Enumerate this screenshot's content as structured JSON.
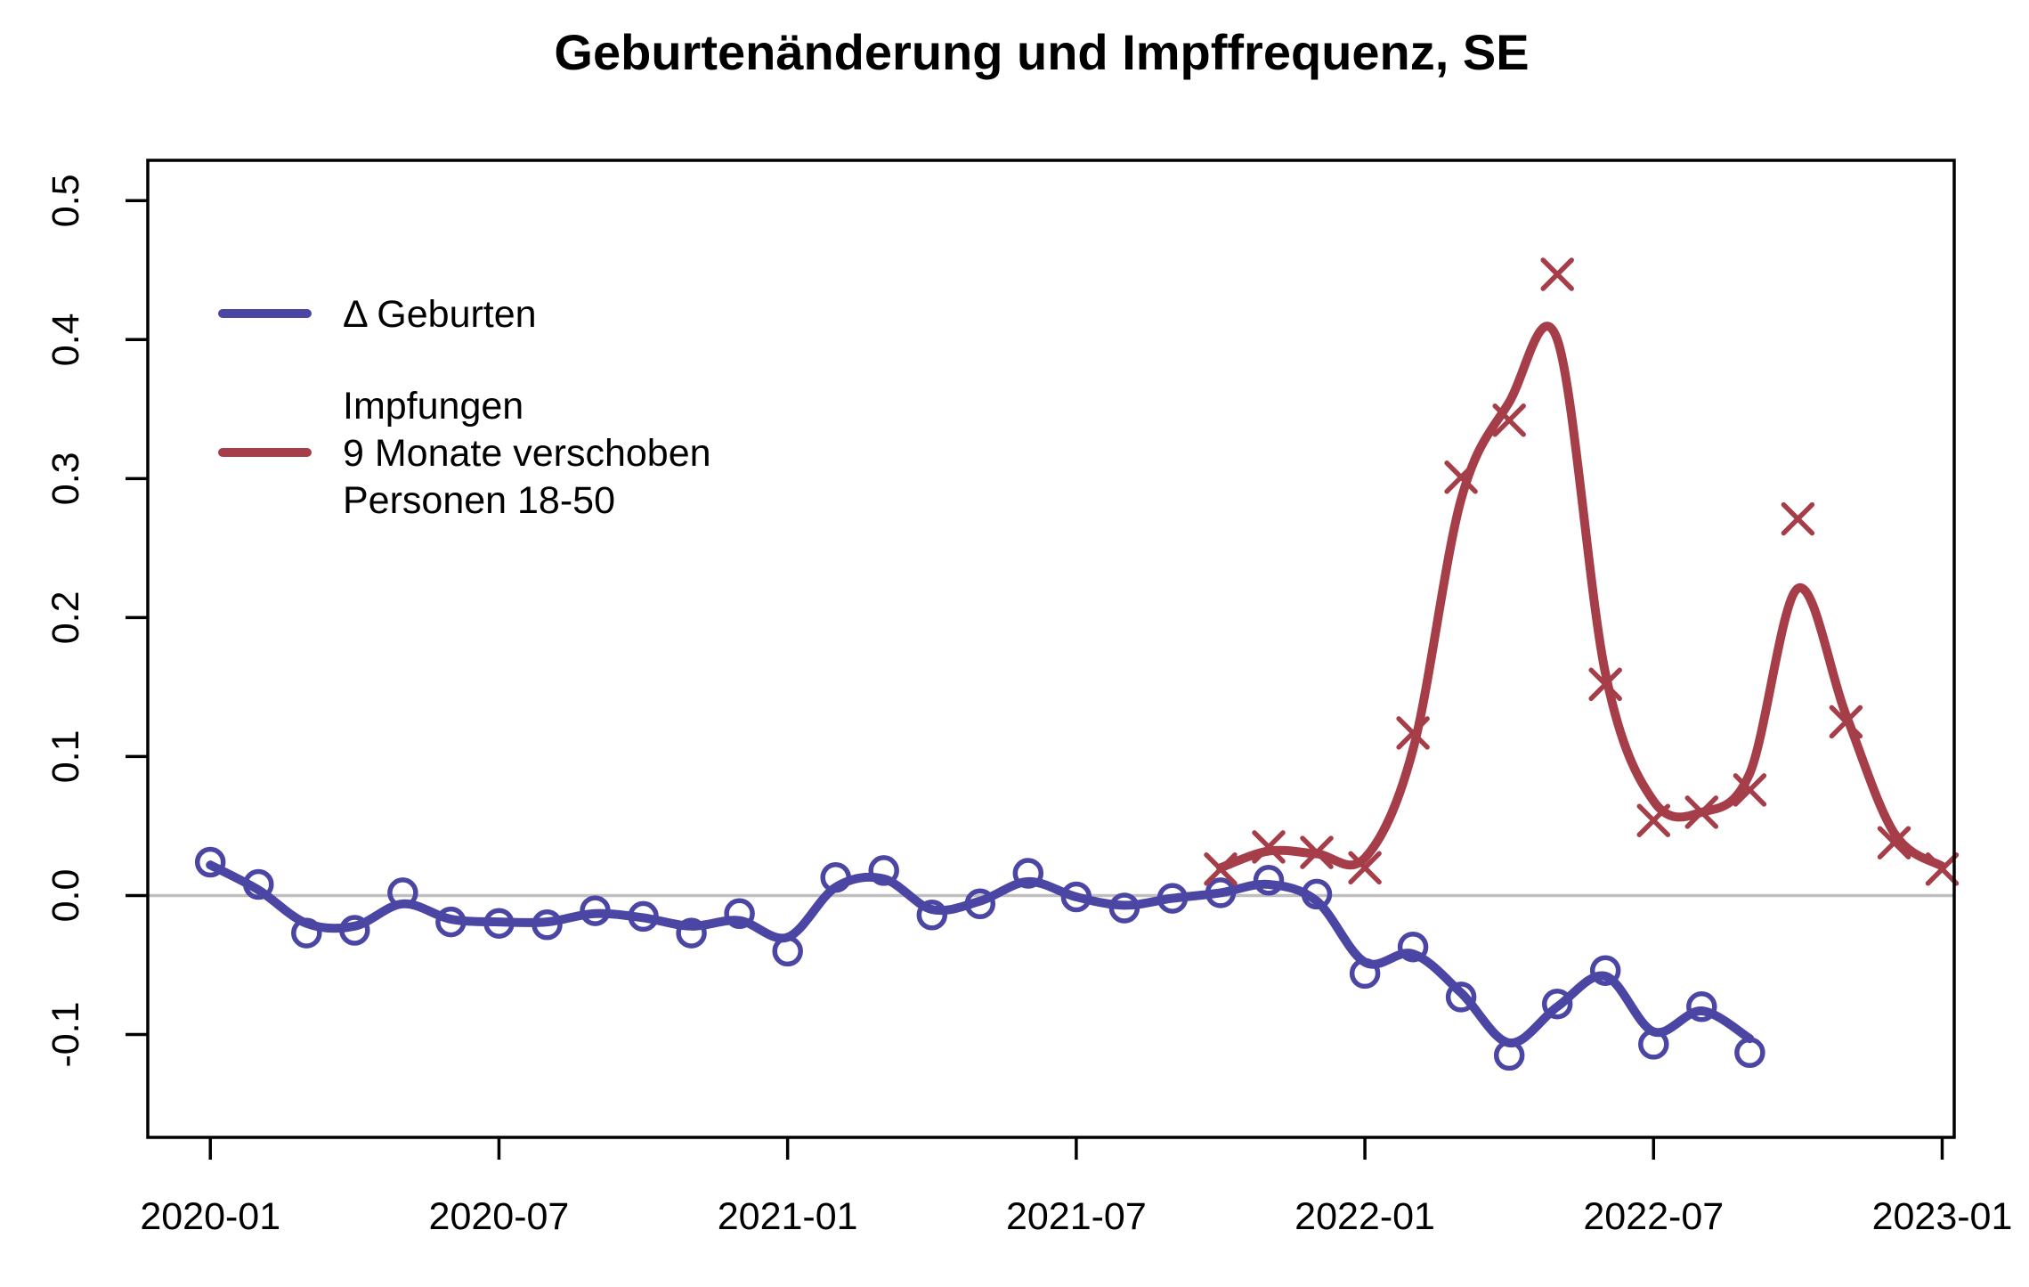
{
  "chart_data": {
    "type": "line",
    "title": "Geburtenänderung und Impffrequenz, SE",
    "xlabel": "",
    "ylabel": "",
    "grid": false,
    "legend_position": "top-left-inside",
    "background_color": "#ffffff",
    "axis_color": "#000000",
    "zero_line_color": "#bfbfbf",
    "ylim": [
      -0.174,
      0.529
    ],
    "xlim_months": [
      -1.3,
      36.25
    ],
    "y_axis": {
      "ticks": [
        {
          "label": "0.5",
          "value": 0.5
        },
        {
          "label": "0.4",
          "value": 0.4
        },
        {
          "label": "0.3",
          "value": 0.3
        },
        {
          "label": "0.2",
          "value": 0.2
        },
        {
          "label": "0.1",
          "value": 0.1
        },
        {
          "label": "0.0",
          "value": 0.0
        },
        {
          "label": "-0.1",
          "value": -0.1
        }
      ]
    },
    "x_axis": {
      "ticks": [
        {
          "label": "2020-01",
          "month": "2020-01"
        },
        {
          "label": "2020-07",
          "month": "2020-07"
        },
        {
          "label": "2021-01",
          "month": "2021-01"
        },
        {
          "label": "2021-07",
          "month": "2021-07"
        },
        {
          "label": "2022-01",
          "month": "2022-01"
        },
        {
          "label": "2022-07",
          "month": "2022-07"
        },
        {
          "label": "2023-01",
          "month": "2023-01"
        }
      ]
    },
    "series": [
      {
        "name": "geburten",
        "label": "Δ Geburten",
        "color": "#4b46a4",
        "marker": "circle",
        "x": [
          "2020-01",
          "2020-02",
          "2020-03",
          "2020-04",
          "2020-05",
          "2020-06",
          "2020-07",
          "2020-08",
          "2020-09",
          "2020-10",
          "2020-11",
          "2020-12",
          "2021-01",
          "2021-02",
          "2021-03",
          "2021-04",
          "2021-05",
          "2021-06",
          "2021-07",
          "2021-08",
          "2021-09",
          "2021-10",
          "2021-11",
          "2021-12",
          "2022-01",
          "2022-02",
          "2022-03",
          "2022-04",
          "2022-05",
          "2022-06",
          "2022-07",
          "2022-08",
          "2022-09"
        ],
        "values": [
          0.024,
          0.008,
          -0.027,
          -0.025,
          0.002,
          -0.019,
          -0.02,
          -0.021,
          -0.011,
          -0.015,
          -0.027,
          -0.013,
          -0.04,
          0.013,
          0.018,
          -0.014,
          -0.006,
          0.016,
          -0.001,
          -0.009,
          -0.002,
          0.002,
          0.011,
          0.001,
          -0.056,
          -0.037,
          -0.073,
          -0.115,
          -0.078,
          -0.054,
          -0.107,
          -0.08,
          -0.113
        ],
        "trend": [
          0.022,
          0.004,
          -0.02,
          -0.022,
          -0.006,
          -0.017,
          -0.019,
          -0.019,
          -0.013,
          -0.016,
          -0.022,
          -0.018,
          -0.03,
          0.006,
          0.012,
          -0.01,
          -0.004,
          0.01,
          -0.001,
          -0.007,
          -0.002,
          0.002,
          0.008,
          -0.004,
          -0.048,
          -0.042,
          -0.07,
          -0.106,
          -0.08,
          -0.058,
          -0.098,
          -0.083,
          -0.103
        ]
      },
      {
        "name": "impfungen",
        "label_lines": [
          "Impfungen",
          "9 Monate verschoben",
          "Personen 18-50"
        ],
        "color": "#a63e4a",
        "marker": "x",
        "x": [
          "2021-10",
          "2021-11",
          "2021-12",
          "2022-01",
          "2022-02",
          "2022-03",
          "2022-04",
          "2022-05",
          "2022-06",
          "2022-07",
          "2022-08",
          "2022-09",
          "2022-10",
          "2022-11",
          "2022-12",
          "2023-01"
        ],
        "values": [
          0.019,
          0.035,
          0.031,
          0.02,
          0.117,
          0.301,
          0.342,
          0.447,
          0.152,
          0.054,
          0.06,
          0.076,
          0.271,
          0.125,
          0.038,
          0.019
        ],
        "trend": [
          0.02,
          0.032,
          0.03,
          0.027,
          0.105,
          0.285,
          0.355,
          0.4,
          0.16,
          0.068,
          0.06,
          0.088,
          0.221,
          0.13,
          0.045,
          0.021
        ]
      }
    ]
  }
}
